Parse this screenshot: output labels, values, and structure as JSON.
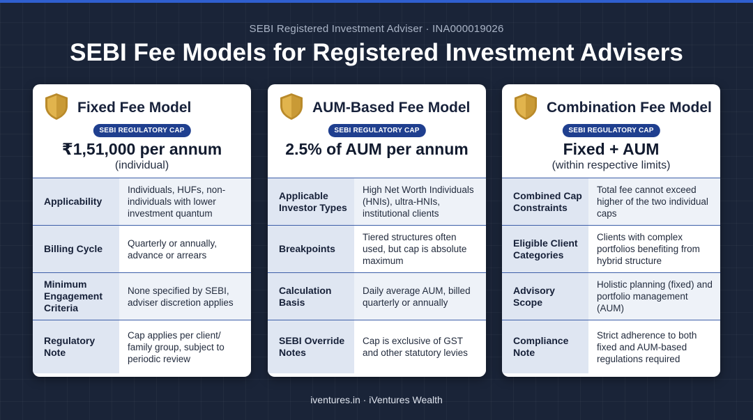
{
  "header": {
    "subtitle": "SEBI Registered Investment Adviser · INA000019026",
    "title": "SEBI Fee Models for Registered Investment Advisers"
  },
  "colors": {
    "background": "#1a2438",
    "accent": "#2f5fd0",
    "badge": "#1f3f8f",
    "shield_gold": "#d9a93c"
  },
  "cards": [
    {
      "icon": "shield-icon",
      "title": "Fixed Fee Model",
      "badge": "SEBI REGULATORY CAP",
      "cap_value": "₹1,51,000 per annum",
      "cap_sub": "(individual)",
      "rows": [
        {
          "key": "Applicability",
          "value": "Individuals, HUFs, non-individuals with lower investment quantum"
        },
        {
          "key": "Billing Cycle",
          "value": "Quarterly or annually, advance or arrears"
        },
        {
          "key": "Minimum Engagement Criteria",
          "value": "None specified by SEBI, adviser discretion applies"
        },
        {
          "key": "Regulatory Note",
          "value": "Cap applies per client/ family group, subject to periodic review"
        }
      ]
    },
    {
      "icon": "shield-icon",
      "title": "AUM-Based Fee Model",
      "badge": "SEBI REGULATORY CAP",
      "cap_value": "2.5% of AUM per annum",
      "cap_sub": "",
      "rows": [
        {
          "key": "Applicable Investor Types",
          "value": "High Net Worth Individuals (HNIs), ultra-HNIs, institutional clients"
        },
        {
          "key": "Breakpoints",
          "value": "Tiered structures often used, but cap is absolute maximum"
        },
        {
          "key": "Calculation Basis",
          "value": "Daily average AUM, billed quarterly or annually"
        },
        {
          "key": "SEBI Override Notes",
          "value": "Cap is exclusive of GST and other statutory levies"
        }
      ]
    },
    {
      "icon": "shield-icon",
      "title": "Combination Fee Model",
      "badge": "SEBI REGULATORY CAP",
      "cap_value": "Fixed + AUM",
      "cap_sub": "(within respective limits)",
      "rows": [
        {
          "key": "Combined Cap Constraints",
          "value": "Total fee cannot exceed higher of the two individual caps"
        },
        {
          "key": "Eligible Client Categories",
          "value": "Clients with complex portfolios benefiting from hybrid structure"
        },
        {
          "key": "Advisory Scope",
          "value": "Holistic planning (fixed) and portfolio management (AUM)"
        },
        {
          "key": "Compliance Note",
          "value": "Strict adherence to both fixed and AUM-based regulations required"
        }
      ]
    }
  ],
  "footer": {
    "text": "iventures.in · iVentures Wealth"
  }
}
